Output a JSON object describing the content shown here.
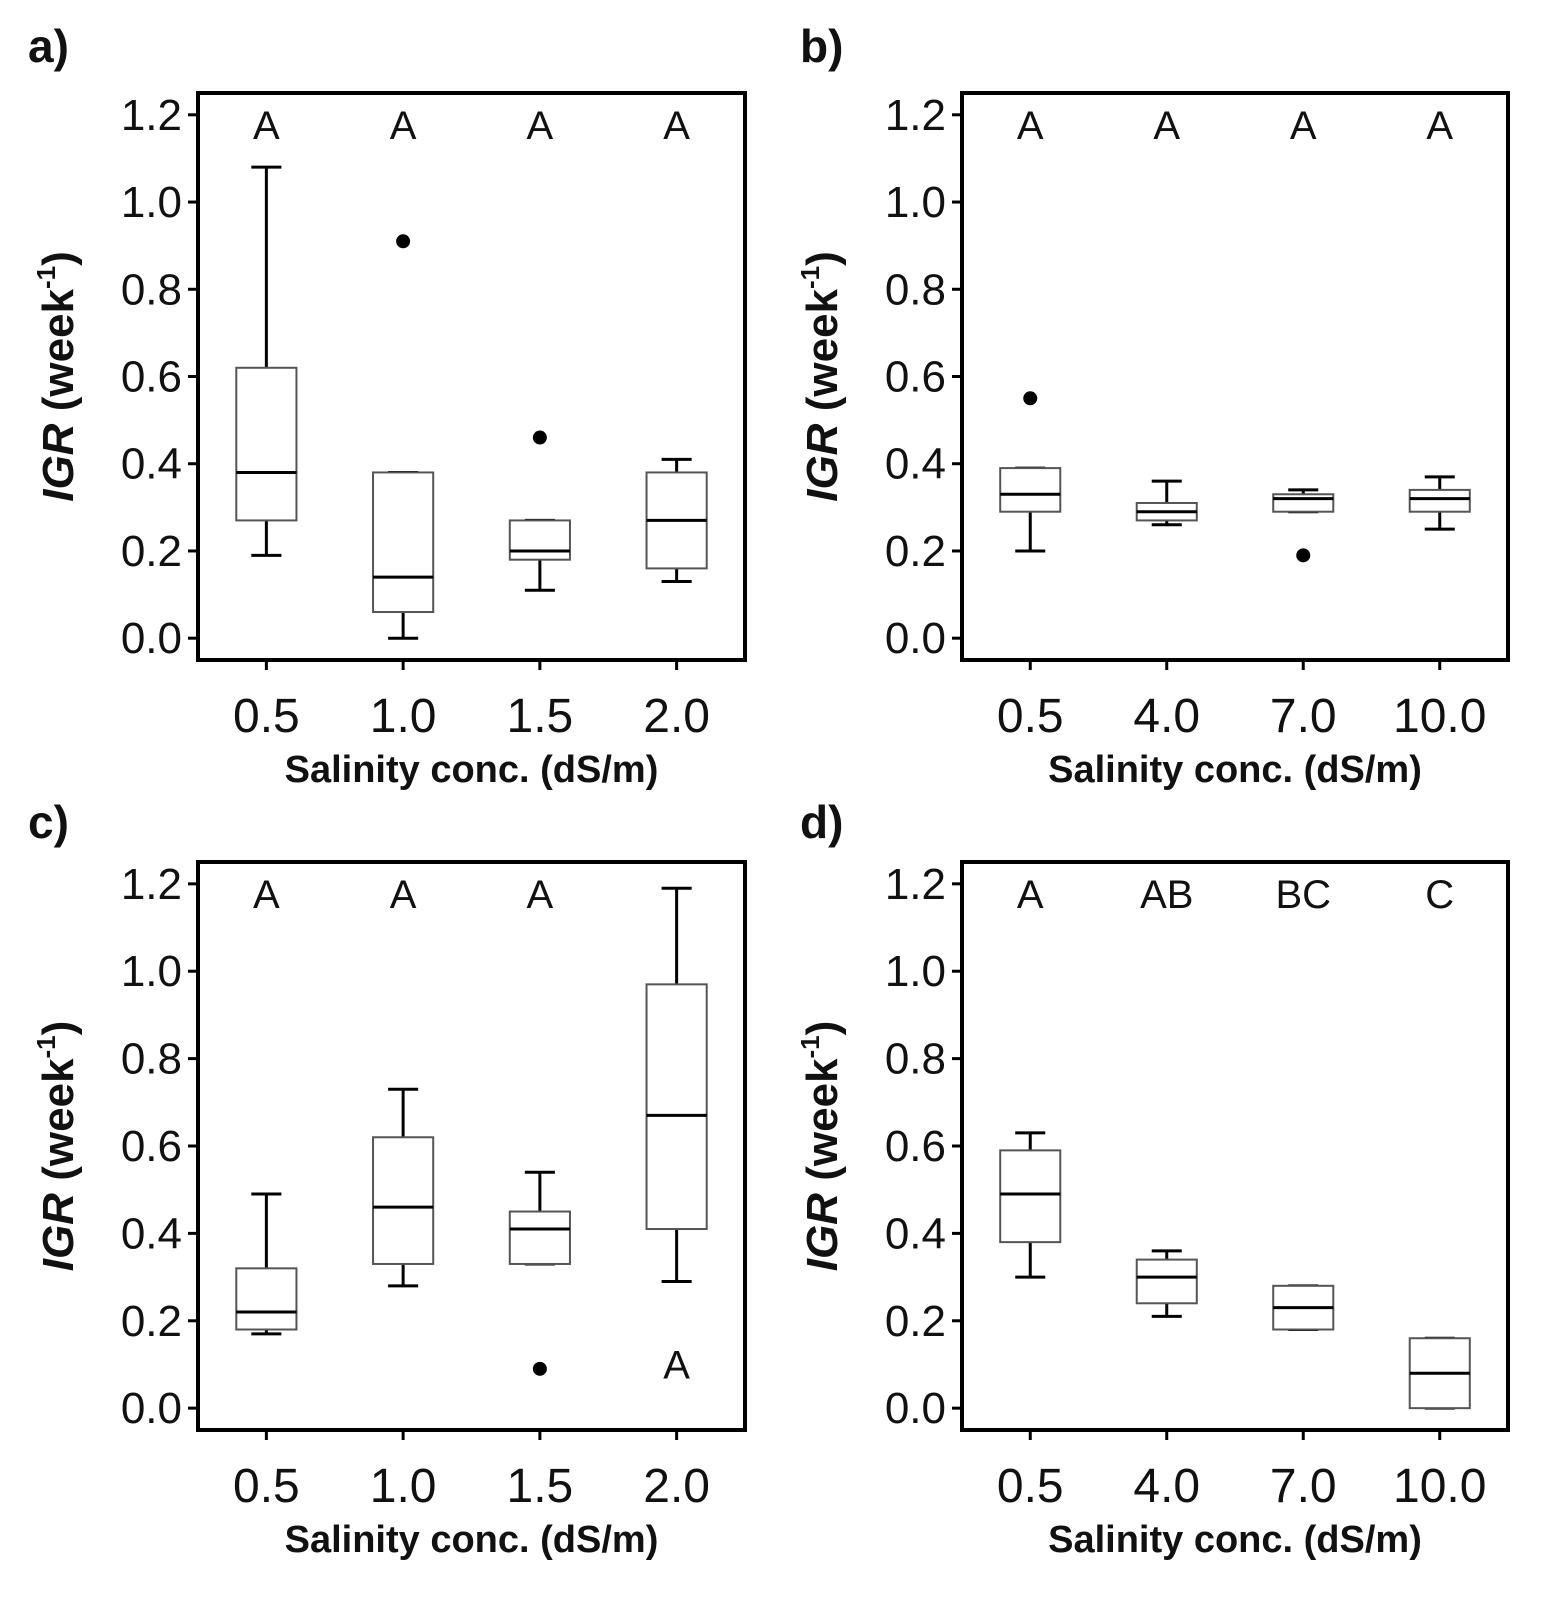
{
  "figure": {
    "ylabel_var": "IGR",
    "ylabel_unit_open": " (week",
    "ylabel_exp": "-1",
    "ylabel_unit_close": ")",
    "xlabel": "Salinity  conc. (dS/m)",
    "yticks": [
      "0.0",
      "0.2",
      "0.4",
      "0.6",
      "0.8",
      "1.0",
      "1.2"
    ]
  },
  "chart_data": [
    {
      "type": "box",
      "panel": "a)",
      "categories": [
        "0.5",
        "1.0",
        "1.5",
        "2.0"
      ],
      "xlabel": "Salinity  conc. (dS/m)",
      "ylabel": "IGR (week-1)",
      "ylim": [
        -0.05,
        1.25
      ],
      "boxes": [
        {
          "min": 0.19,
          "q1": 0.27,
          "median": 0.38,
          "q3": 0.62,
          "max": 1.08,
          "outliers": []
        },
        {
          "min": 0.0,
          "q1": 0.06,
          "median": 0.14,
          "q3": 0.38,
          "max": 0.38,
          "outliers": [
            0.91
          ]
        },
        {
          "min": 0.11,
          "q1": 0.18,
          "median": 0.2,
          "q3": 0.27,
          "max": 0.27,
          "outliers": [
            0.46
          ]
        },
        {
          "min": 0.13,
          "q1": 0.16,
          "median": 0.27,
          "q3": 0.38,
          "max": 0.41,
          "outliers": []
        }
      ],
      "letters": [
        "A",
        "A",
        "A",
        "A"
      ],
      "extra_letters": []
    },
    {
      "type": "box",
      "panel": "b)",
      "categories": [
        "0.5",
        "4.0",
        "7.0",
        "10.0"
      ],
      "xlabel": "Salinity  conc. (dS/m)",
      "ylabel": "IGR (week-1)",
      "ylim": [
        -0.05,
        1.25
      ],
      "boxes": [
        {
          "min": 0.2,
          "q1": 0.29,
          "median": 0.33,
          "q3": 0.39,
          "max": 0.39,
          "outliers": [
            0.55
          ]
        },
        {
          "min": 0.26,
          "q1": 0.27,
          "median": 0.29,
          "q3": 0.31,
          "max": 0.36,
          "outliers": []
        },
        {
          "min": 0.29,
          "q1": 0.29,
          "median": 0.32,
          "q3": 0.33,
          "max": 0.34,
          "outliers": [
            0.19
          ]
        },
        {
          "min": 0.25,
          "q1": 0.29,
          "median": 0.32,
          "q3": 0.34,
          "max": 0.37,
          "outliers": []
        }
      ],
      "letters": [
        "A",
        "A",
        "A",
        "A"
      ],
      "extra_letters": []
    },
    {
      "type": "box",
      "panel": "c)",
      "categories": [
        "0.5",
        "1.0",
        "1.5",
        "2.0"
      ],
      "xlabel": "Salinity  conc. (dS/m)",
      "ylabel": "IGR (week-1)",
      "ylim": [
        -0.05,
        1.25
      ],
      "boxes": [
        {
          "min": 0.17,
          "q1": 0.18,
          "median": 0.22,
          "q3": 0.32,
          "max": 0.49,
          "outliers": []
        },
        {
          "min": 0.28,
          "q1": 0.33,
          "median": 0.46,
          "q3": 0.62,
          "max": 0.73,
          "outliers": []
        },
        {
          "min": 0.33,
          "q1": 0.33,
          "median": 0.41,
          "q3": 0.45,
          "max": 0.54,
          "outliers": [
            0.09
          ]
        },
        {
          "min": 0.29,
          "q1": 0.41,
          "median": 0.67,
          "q3": 0.97,
          "max": 1.19,
          "outliers": []
        }
      ],
      "letters": [
        "A",
        "A",
        "A",
        ""
      ],
      "extra_letters": [
        {
          "category": "2.0",
          "y": 0.1,
          "text": "A"
        }
      ]
    },
    {
      "type": "box",
      "panel": "d)",
      "categories": [
        "0.5",
        "4.0",
        "7.0",
        "10.0"
      ],
      "xlabel": "Salinity  conc. (dS/m)",
      "ylabel": "IGR (week-1)",
      "ylim": [
        -0.05,
        1.25
      ],
      "boxes": [
        {
          "min": 0.3,
          "q1": 0.38,
          "median": 0.49,
          "q3": 0.59,
          "max": 0.63,
          "outliers": []
        },
        {
          "min": 0.21,
          "q1": 0.24,
          "median": 0.3,
          "q3": 0.34,
          "max": 0.36,
          "outliers": []
        },
        {
          "min": 0.18,
          "q1": 0.18,
          "median": 0.23,
          "q3": 0.28,
          "max": 0.28,
          "outliers": []
        },
        {
          "min": 0.0,
          "q1": 0.0,
          "median": 0.08,
          "q3": 0.16,
          "max": 0.16,
          "outliers": []
        }
      ],
      "letters": [
        "A",
        "AB",
        "BC",
        "C"
      ],
      "extra_letters": []
    }
  ]
}
